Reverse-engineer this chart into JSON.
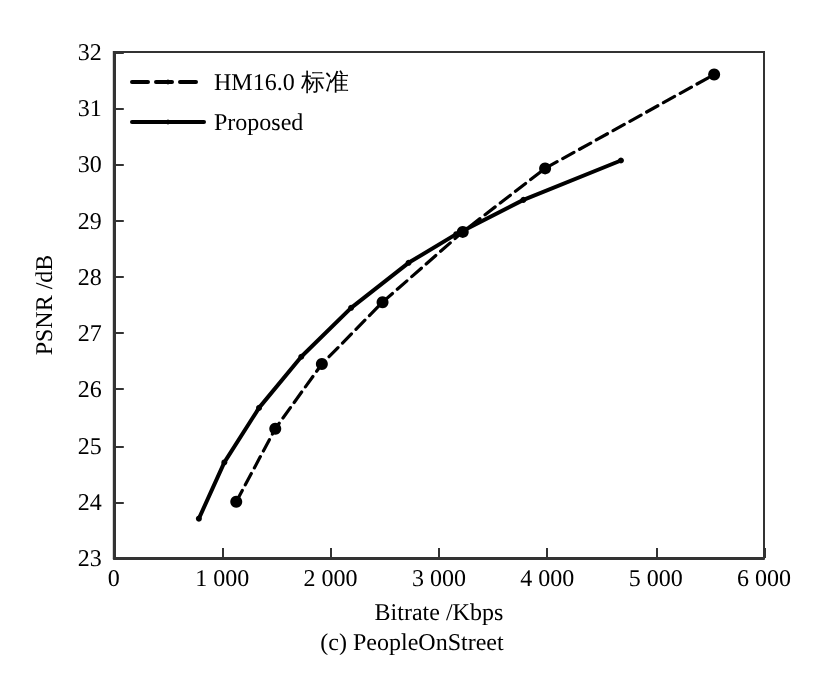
{
  "chart_data": {
    "type": "line",
    "xlabel": "Bitrate /Kbps",
    "ylabel": "PSNR /dB",
    "annotations": [
      "(c) PeopleOnStreet"
    ],
    "xlim": [
      0,
      6000
    ],
    "xticks": [
      0,
      {
        "value": 1000,
        "label": "1 000"
      },
      {
        "value": 2000,
        "label": "2 000"
      },
      {
        "value": 3000,
        "label": "3 000"
      },
      {
        "value": 4000,
        "label": "4 000"
      },
      {
        "value": 5000,
        "label": "5 000"
      },
      {
        "value": 6000,
        "label": "6 000"
      }
    ],
    "ylim": [
      23,
      32
    ],
    "yticks": [
      23,
      24,
      25,
      26,
      27,
      28,
      29,
      30,
      31,
      32
    ],
    "grid": false,
    "legend": "top left",
    "marker": "circle",
    "series": [
      {
        "name": "HM16.0 标准",
        "color": "#000000",
        "line_style": "dashed",
        "x": [
          1130,
          1490,
          1920,
          2480,
          3220,
          3980,
          5540
        ],
        "values": [
          24.0,
          25.3,
          26.45,
          27.55,
          28.8,
          29.93,
          31.6
        ]
      },
      {
        "name": "Proposed",
        "color": "#000000",
        "line_style": "solid",
        "x": [
          785,
          1020,
          1340,
          1730,
          2190,
          2720,
          3160,
          3780,
          4680
        ],
        "values": [
          23.7,
          24.7,
          25.67,
          26.58,
          27.45,
          28.25,
          28.76,
          29.37,
          30.07
        ]
      }
    ]
  }
}
